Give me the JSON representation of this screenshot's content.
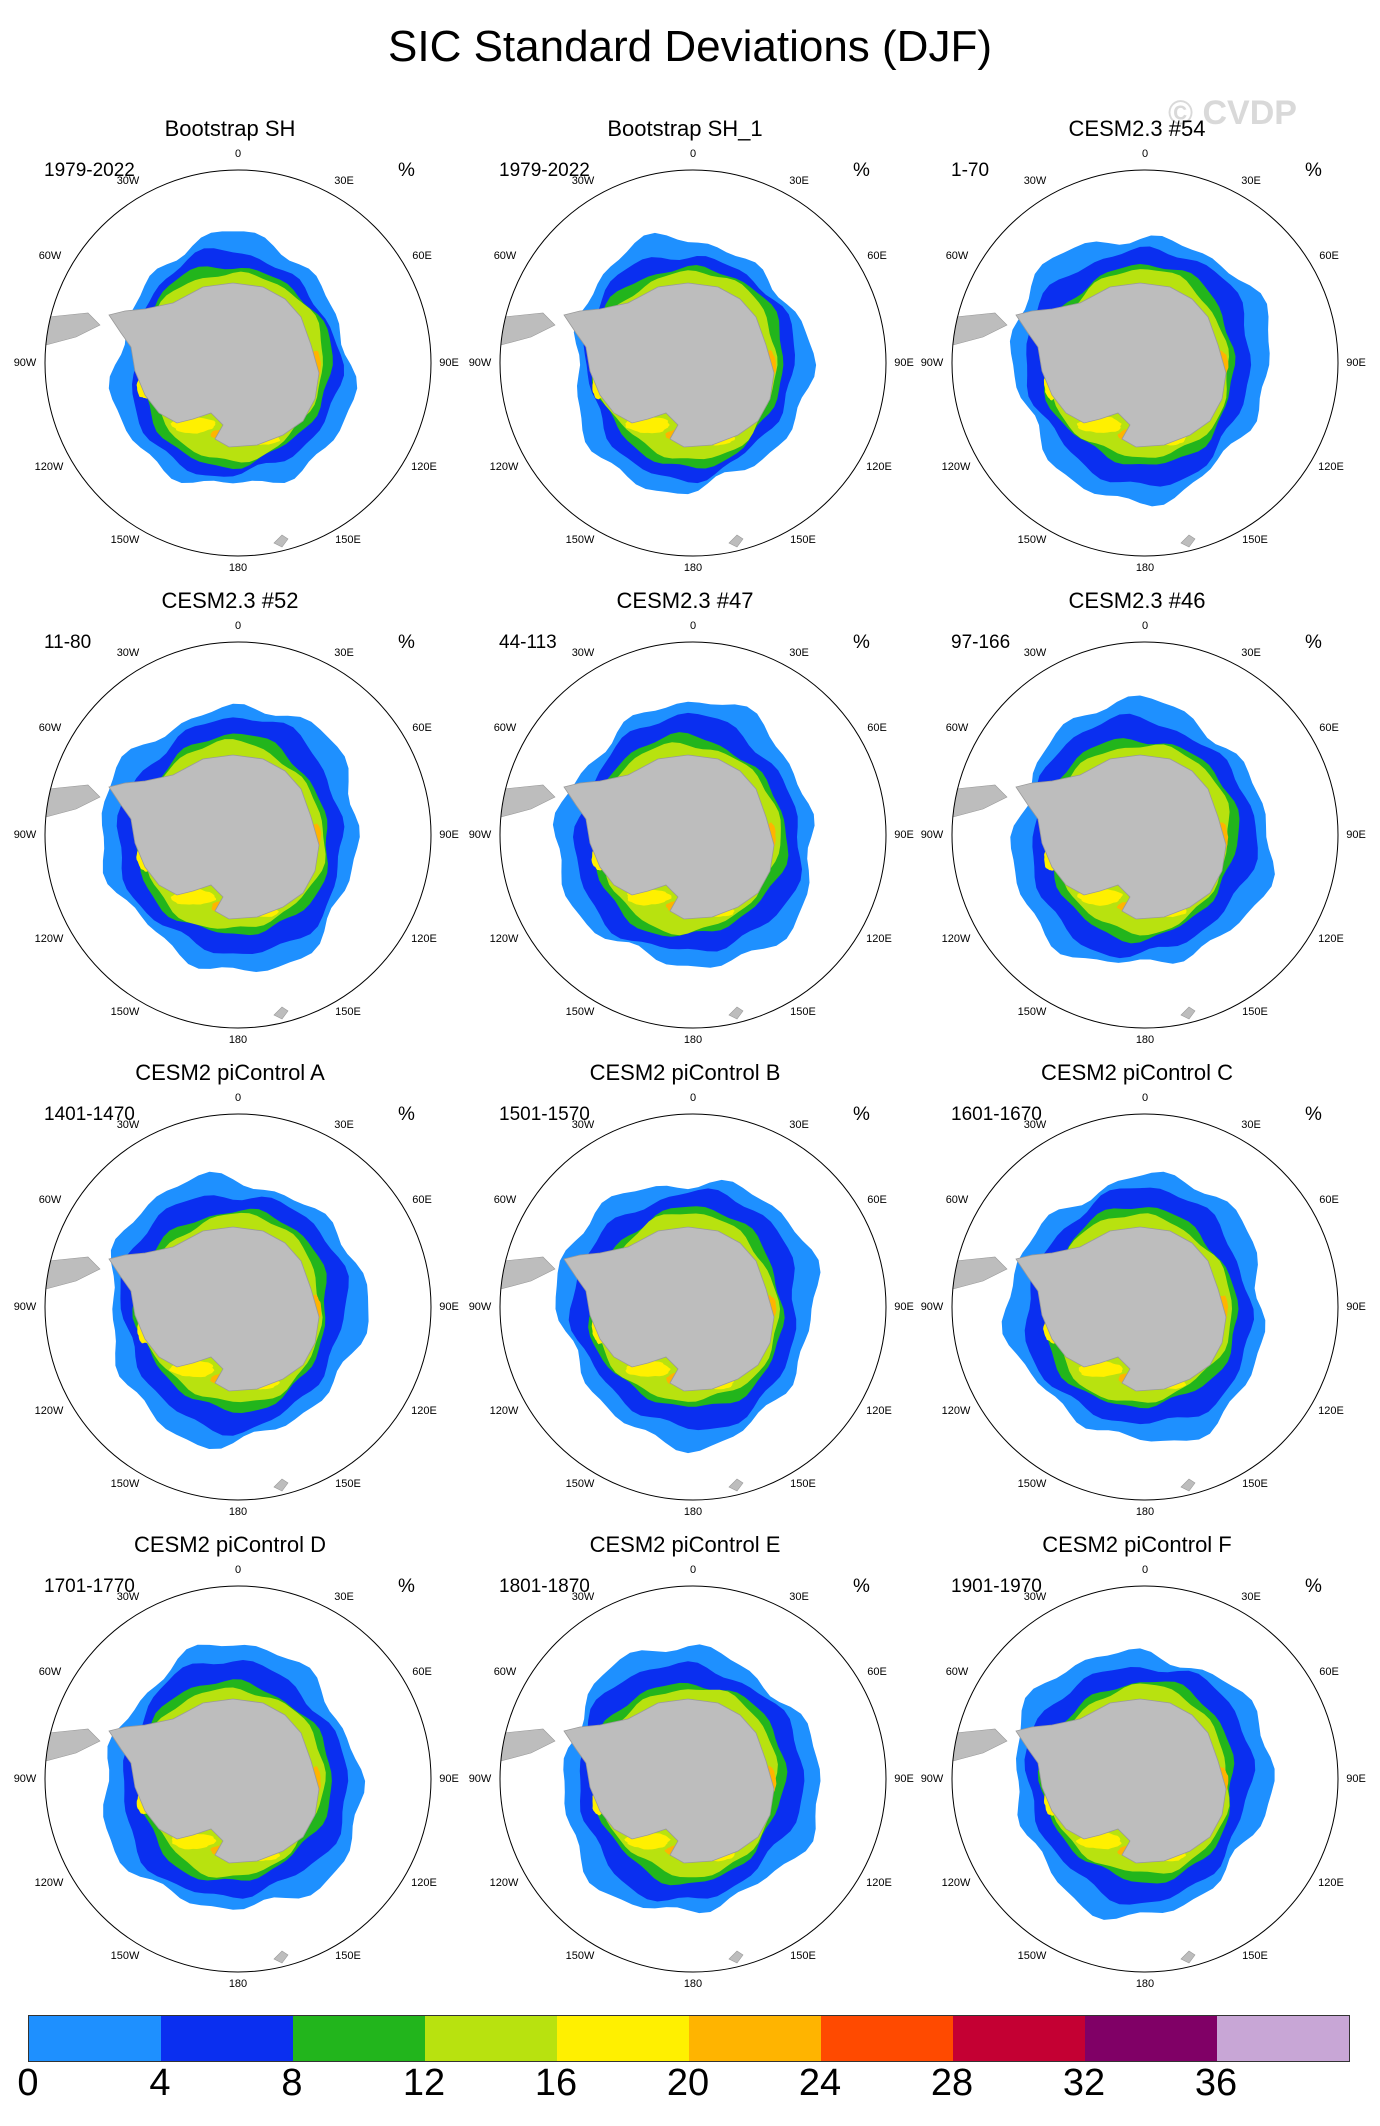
{
  "title": "SIC Standard Deviations (DJF)",
  "watermark": "© CVDP",
  "map_labels": {
    "lon_0": "0",
    "lon_30e": "30E",
    "lon_60e": "60E",
    "lon_90e": "90E",
    "lon_120e": "120E",
    "lon_150e": "150E",
    "lon_180": "180",
    "lon_150w": "150W",
    "lon_120w": "120W",
    "lon_90w": "90W",
    "lon_60w": "60W",
    "lon_30w": "30W"
  },
  "colors": {
    "ocean_bg": "#ffffff",
    "land": "#bdbdbd",
    "land_edge": "#9a9a9a",
    "levels": [
      "#1e90ff",
      "#0a2ff0",
      "#22b51c",
      "#b8e20f",
      "#fff000",
      "#ffb400",
      "#ff4a00",
      "#c40033",
      "#800066",
      "#c8a6d6"
    ]
  },
  "chart_data": {
    "type": "heatmap",
    "projection": "south-polar-stereographic",
    "units": "%",
    "colorbar": {
      "ticks": [
        "0",
        "4",
        "8",
        "12",
        "16",
        "20",
        "24",
        "28",
        "32",
        "36"
      ],
      "bins": [
        [
          0,
          4
        ],
        [
          4,
          8
        ],
        [
          8,
          12
        ],
        [
          12,
          16
        ],
        [
          16,
          20
        ],
        [
          20,
          24
        ],
        [
          24,
          28
        ],
        [
          28,
          32
        ],
        [
          32,
          36
        ],
        [
          36,
          40
        ]
      ]
    },
    "panels": [
      {
        "title": "Bootstrap SH",
        "years": "1979-2022",
        "units": "%"
      },
      {
        "title": "Bootstrap SH_1",
        "years": "1979-2022",
        "units": "%"
      },
      {
        "title": "CESM2.3 #54",
        "years": "1-70",
        "units": "%"
      },
      {
        "title": "CESM2.3 #52",
        "years": "11-80",
        "units": "%"
      },
      {
        "title": "CESM2.3 #47",
        "years": "44-113",
        "units": "%"
      },
      {
        "title": "CESM2.3 #46",
        "years": "97-166",
        "units": "%"
      },
      {
        "title": "CESM2 piControl A",
        "years": "1401-1470",
        "units": "%"
      },
      {
        "title": "CESM2 piControl B",
        "years": "1501-1570",
        "units": "%"
      },
      {
        "title": "CESM2 piControl C",
        "years": "1601-1670",
        "units": "%"
      },
      {
        "title": "CESM2 piControl D",
        "years": "1701-1770",
        "units": "%"
      },
      {
        "title": "CESM2 piControl E",
        "years": "1801-1870",
        "units": "%"
      },
      {
        "title": "CESM2 piControl F",
        "years": "1901-1970",
        "units": "%"
      }
    ]
  }
}
